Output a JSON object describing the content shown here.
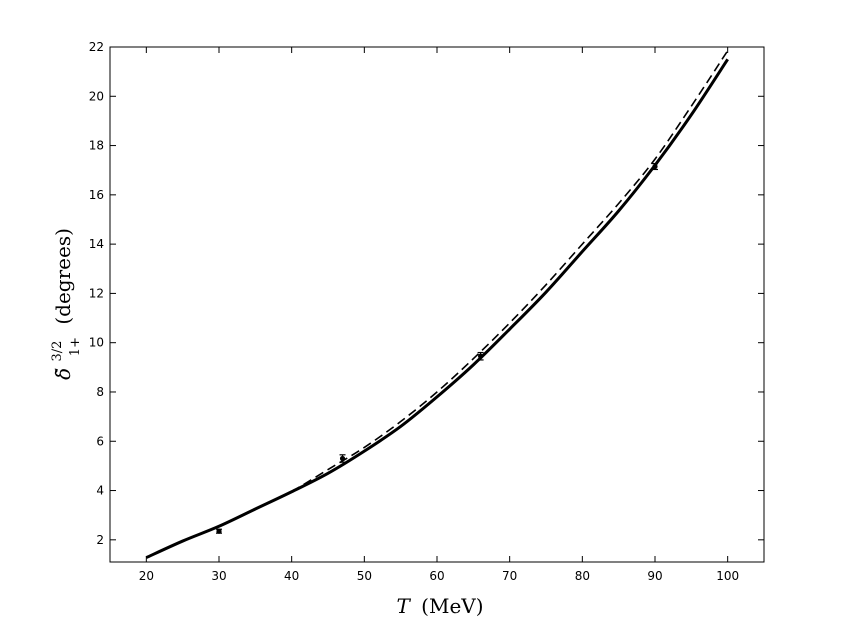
{
  "chart_data": {
    "type": "line",
    "xlabel": "T (MeV)",
    "xlabel_var": "T",
    "xlabel_unit": "(MeV)",
    "ylabel": "δ̃ 3/2 1+ (degrees)",
    "ylabel_symbol": "δ̃",
    "ylabel_sup": "3/2",
    "ylabel_sub": "1+",
    "ylabel_unit": "(degrees)",
    "xlim": [
      15,
      105
    ],
    "ylim": [
      1.1,
      22
    ],
    "xticks": [
      20,
      30,
      40,
      50,
      60,
      70,
      80,
      90,
      100
    ],
    "yticks": [
      2,
      4,
      6,
      8,
      10,
      12,
      14,
      16,
      18,
      20,
      22
    ],
    "grid": false,
    "series": [
      {
        "style": "solid",
        "color": "#000000",
        "x": [
          20,
          25,
          30,
          35,
          40,
          45,
          50,
          55,
          60,
          65,
          70,
          75,
          80,
          85,
          90,
          95,
          100
        ],
        "y": [
          1.28,
          1.95,
          2.55,
          3.25,
          3.95,
          4.7,
          5.6,
          6.6,
          7.8,
          9.1,
          10.55,
          12.05,
          13.7,
          15.35,
          17.2,
          19.25,
          21.5
        ]
      },
      {
        "style": "dashed",
        "color": "#000000",
        "x": [
          40,
          45,
          50,
          55,
          60,
          65,
          70,
          75,
          80,
          85,
          90,
          95,
          100
        ],
        "y": [
          3.95,
          4.85,
          5.75,
          6.8,
          8.0,
          9.35,
          10.8,
          12.35,
          14.0,
          15.65,
          17.45,
          19.6,
          21.85
        ]
      }
    ],
    "data_points": {
      "x": [
        30,
        47,
        66,
        90
      ],
      "y": [
        2.35,
        5.3,
        9.45,
        17.15
      ],
      "err": [
        0.08,
        0.15,
        0.15,
        0.12
      ]
    }
  }
}
